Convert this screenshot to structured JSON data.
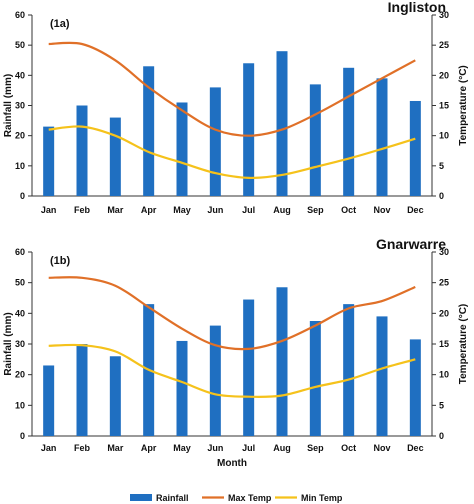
{
  "chart_data": [
    {
      "type": "bar+line",
      "panel_label": "(1a)",
      "title": "Ingliston",
      "categories": [
        "Jan",
        "Feb",
        "Mar",
        "Apr",
        "May",
        "Jun",
        "Jul",
        "Aug",
        "Sep",
        "Oct",
        "Nov",
        "Dec"
      ],
      "ylabel": "Rainfall (mm)",
      "y2label": "Temperature (°C)",
      "xlabel": "",
      "ylim": [
        0,
        60
      ],
      "y2lim": [
        0,
        30
      ],
      "yticks": [
        "0",
        "10",
        "20",
        "30",
        "40",
        "50",
        "60"
      ],
      "y2ticks": [
        "0",
        "5",
        "10",
        "15",
        "20",
        "25",
        "30"
      ],
      "series": [
        {
          "name": "Rainfall",
          "type": "bar",
          "axis": "left",
          "color": "#1f6fc1",
          "values": [
            23,
            30,
            26,
            43,
            31,
            36,
            44,
            48,
            37,
            42.5,
            39,
            31.5
          ]
        },
        {
          "name": "Max Temp",
          "type": "line",
          "axis": "right",
          "color": "#e07028",
          "values": [
            25.2,
            25.2,
            22.5,
            18,
            14.2,
            11,
            10,
            11,
            13.5,
            16.5,
            19.5,
            22.5
          ]
        },
        {
          "name": "Min Temp",
          "type": "line",
          "axis": "right",
          "color": "#f5c21b",
          "values": [
            11,
            11.5,
            10,
            7.3,
            5.5,
            3.8,
            3,
            3.5,
            4.8,
            6.2,
            7.8,
            9.5
          ]
        }
      ]
    },
    {
      "type": "bar+line",
      "panel_label": "(1b)",
      "title": "Gnarwarre",
      "categories": [
        "Jan",
        "Feb",
        "Mar",
        "Apr",
        "May",
        "Jun",
        "Jul",
        "Aug",
        "Sep",
        "Oct",
        "Nov",
        "Dec"
      ],
      "ylabel": "Rainfall (mm)",
      "y2label": "Temperature (°C)",
      "xlabel": "Month",
      "ylim": [
        0,
        60
      ],
      "y2lim": [
        0,
        30
      ],
      "yticks": [
        "0",
        "10",
        "20",
        "30",
        "40",
        "50",
        "60"
      ],
      "y2ticks": [
        "0",
        "5",
        "10",
        "15",
        "20",
        "25",
        "30"
      ],
      "series": [
        {
          "name": "Rainfall",
          "type": "bar",
          "axis": "left",
          "color": "#1f6fc1",
          "values": [
            23,
            30,
            26,
            43,
            31,
            36,
            44.5,
            48.5,
            37.5,
            43,
            39,
            31.5
          ]
        },
        {
          "name": "Max Temp",
          "type": "line",
          "axis": "right",
          "color": "#e07028",
          "values": [
            25.8,
            25.8,
            24.5,
            21,
            17.5,
            14.8,
            14.2,
            15.5,
            18,
            20.8,
            22,
            24.3
          ]
        },
        {
          "name": "Min Temp",
          "type": "line",
          "axis": "right",
          "color": "#f5c21b",
          "values": [
            14.7,
            14.8,
            13.8,
            10.8,
            8.8,
            6.8,
            6.4,
            6.6,
            8,
            9.2,
            11,
            12.5
          ]
        }
      ]
    }
  ],
  "legend": {
    "placement": "bottom",
    "items": [
      {
        "name": "Rainfall",
        "color": "#1f6fc1",
        "kind": "bar"
      },
      {
        "name": "Max Temp",
        "color": "#e07028",
        "kind": "line"
      },
      {
        "name": "Min Temp",
        "color": "#f5c21b",
        "kind": "line"
      }
    ]
  }
}
